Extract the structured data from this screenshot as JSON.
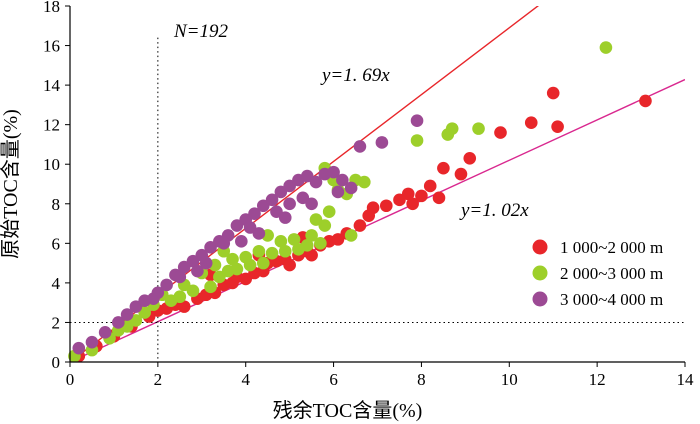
{
  "chart_data": {
    "type": "scatter",
    "xlabel": "残余TOC含量(%)",
    "ylabel": "原始TOC含量(%)",
    "xlim": [
      0,
      14
    ],
    "ylim": [
      0,
      18
    ],
    "x_ticks": [
      0,
      2,
      4,
      6,
      8,
      10,
      12,
      14
    ],
    "y_ticks": [
      0,
      2,
      4,
      6,
      8,
      10,
      12,
      14,
      16,
      18
    ],
    "grid": false,
    "legend_position": "right",
    "annotations": {
      "n_label": "N=192",
      "line_upper_label": "y=1. 69x",
      "line_lower_label": "y=1. 02x"
    },
    "reference_lines": [
      {
        "name": "y=1. 69x",
        "slope": 1.69,
        "color": "#e8262a"
      },
      {
        "name": "y=1. 02x",
        "slope": 1.02,
        "color": "#d9288f"
      }
    ],
    "cutoffs": {
      "x": 2,
      "y": 2
    },
    "series": [
      {
        "name": "1 000~2 000 m",
        "color": "#e8262a",
        "points": [
          [
            0.2,
            0.3
          ],
          [
            0.6,
            0.8
          ],
          [
            1.0,
            1.3
          ],
          [
            1.4,
            1.8
          ],
          [
            1.8,
            2.3
          ],
          [
            2.0,
            2.6
          ],
          [
            2.2,
            2.7
          ],
          [
            2.4,
            2.9
          ],
          [
            2.6,
            2.8
          ],
          [
            2.9,
            3.2
          ],
          [
            3.1,
            3.4
          ],
          [
            3.3,
            3.5
          ],
          [
            3.5,
            3.9
          ],
          [
            3.7,
            4.0
          ],
          [
            3.8,
            4.3
          ],
          [
            4.0,
            4.2
          ],
          [
            4.2,
            4.5
          ],
          [
            4.4,
            4.6
          ],
          [
            4.5,
            5.0
          ],
          [
            4.7,
            5.1
          ],
          [
            4.9,
            5.2
          ],
          [
            5.0,
            4.9
          ],
          [
            5.2,
            5.4
          ],
          [
            5.4,
            5.6
          ],
          [
            5.5,
            5.4
          ],
          [
            5.7,
            5.9
          ],
          [
            5.9,
            6.1
          ],
          [
            6.1,
            6.2
          ],
          [
            6.3,
            6.5
          ],
          [
            6.6,
            6.9
          ],
          [
            6.8,
            7.4
          ],
          [
            6.9,
            7.8
          ],
          [
            7.2,
            7.9
          ],
          [
            7.5,
            8.2
          ],
          [
            7.7,
            8.5
          ],
          [
            7.8,
            8.0
          ],
          [
            8.0,
            8.4
          ],
          [
            8.2,
            8.9
          ],
          [
            8.4,
            8.3
          ],
          [
            8.5,
            9.8
          ],
          [
            8.9,
            9.5
          ],
          [
            9.1,
            10.3
          ],
          [
            9.8,
            11.6
          ],
          [
            10.5,
            12.1
          ],
          [
            11.1,
            11.9
          ],
          [
            11.0,
            13.6
          ],
          [
            13.1,
            13.2
          ],
          [
            3.2,
            4.4
          ],
          [
            4.3,
            5.4
          ],
          [
            5.3,
            6.3
          ]
        ]
      },
      {
        "name": "2 000~3 000 m",
        "color": "#9dcf2a",
        "points": [
          [
            0.1,
            0.3
          ],
          [
            0.5,
            0.6
          ],
          [
            0.9,
            1.2
          ],
          [
            1.1,
            1.6
          ],
          [
            1.3,
            1.8
          ],
          [
            1.5,
            2.1
          ],
          [
            1.7,
            2.5
          ],
          [
            1.9,
            2.9
          ],
          [
            2.1,
            3.4
          ],
          [
            2.3,
            3.1
          ],
          [
            2.5,
            3.3
          ],
          [
            2.6,
            3.9
          ],
          [
            2.8,
            3.6
          ],
          [
            3.0,
            4.5
          ],
          [
            3.2,
            3.8
          ],
          [
            3.3,
            4.9
          ],
          [
            3.4,
            4.3
          ],
          [
            3.6,
            4.6
          ],
          [
            3.7,
            5.2
          ],
          [
            3.8,
            4.7
          ],
          [
            4.0,
            5.3
          ],
          [
            4.1,
            4.9
          ],
          [
            4.3,
            5.6
          ],
          [
            4.4,
            5.0
          ],
          [
            4.6,
            5.5
          ],
          [
            4.8,
            6.1
          ],
          [
            4.9,
            5.6
          ],
          [
            5.1,
            6.2
          ],
          [
            5.2,
            5.7
          ],
          [
            5.4,
            5.9
          ],
          [
            5.5,
            6.4
          ],
          [
            5.6,
            7.2
          ],
          [
            5.7,
            6.0
          ],
          [
            5.8,
            6.9
          ],
          [
            5.9,
            7.6
          ],
          [
            6.0,
            9.2
          ],
          [
            6.1,
            8.7
          ],
          [
            6.3,
            8.5
          ],
          [
            6.4,
            6.4
          ],
          [
            6.5,
            9.2
          ],
          [
            6.7,
            9.1
          ],
          [
            5.8,
            9.8
          ],
          [
            8.6,
            11.5
          ],
          [
            8.7,
            11.8
          ],
          [
            9.3,
            11.8
          ],
          [
            12.2,
            15.9
          ],
          [
            4.5,
            6.4
          ],
          [
            3.5,
            5.6
          ],
          [
            7.9,
            11.2
          ]
        ]
      },
      {
        "name": "3 000~4 000 m",
        "color": "#9c4a94",
        "points": [
          [
            0.2,
            0.7
          ],
          [
            0.5,
            1.0
          ],
          [
            0.8,
            1.5
          ],
          [
            1.1,
            2.0
          ],
          [
            1.3,
            2.4
          ],
          [
            1.5,
            2.8
          ],
          [
            1.7,
            3.1
          ],
          [
            2.0,
            3.5
          ],
          [
            2.2,
            3.9
          ],
          [
            2.4,
            4.4
          ],
          [
            2.6,
            4.8
          ],
          [
            2.8,
            5.1
          ],
          [
            3.0,
            5.4
          ],
          [
            3.2,
            5.8
          ],
          [
            3.4,
            6.1
          ],
          [
            3.6,
            6.4
          ],
          [
            3.8,
            6.9
          ],
          [
            4.0,
            7.2
          ],
          [
            4.2,
            7.5
          ],
          [
            4.4,
            7.9
          ],
          [
            4.6,
            8.2
          ],
          [
            4.8,
            8.6
          ],
          [
            5.0,
            8.9
          ],
          [
            5.2,
            9.2
          ],
          [
            5.4,
            9.4
          ],
          [
            5.6,
            9.1
          ],
          [
            5.8,
            9.5
          ],
          [
            6.0,
            9.6
          ],
          [
            6.2,
            9.2
          ],
          [
            6.4,
            8.8
          ],
          [
            3.5,
            6.0
          ],
          [
            4.1,
            6.8
          ],
          [
            4.7,
            7.6
          ],
          [
            5.3,
            8.3
          ],
          [
            2.5,
            4.3
          ],
          [
            3.1,
            5.0
          ],
          [
            6.6,
            10.9
          ],
          [
            7.1,
            11.1
          ],
          [
            7.9,
            12.2
          ],
          [
            4.3,
            6.5
          ],
          [
            5.5,
            8.0
          ],
          [
            2.9,
            4.6
          ],
          [
            3.9,
            6.1
          ],
          [
            5.0,
            8.0
          ],
          [
            6.1,
            8.6
          ],
          [
            1.9,
            3.2
          ],
          [
            4.9,
            7.3
          ]
        ]
      }
    ]
  }
}
